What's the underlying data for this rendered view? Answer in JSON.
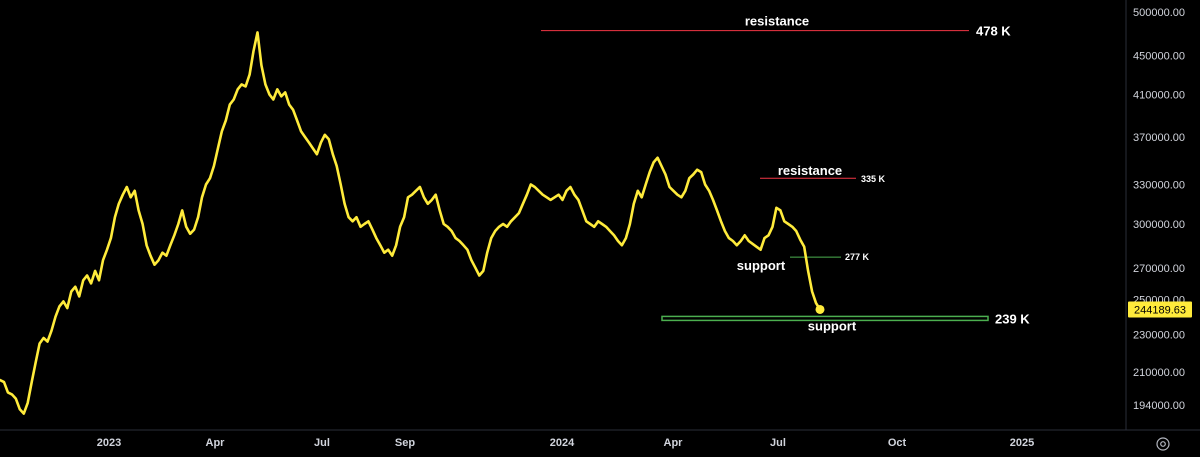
{
  "chart_data": {
    "type": "line",
    "title": "",
    "xlabel": "",
    "ylabel": "",
    "ylim": [
      180000,
      510000
    ],
    "y_scale": "log",
    "grid": false,
    "line_color": "#ffeb3b",
    "background": "#000000",
    "y_ticks": [
      "500000.00",
      "450000.00",
      "410000.00",
      "370000.00",
      "330000.00",
      "300000.00",
      "270000.00",
      "250000.00",
      "230000.00",
      "210000.00",
      "194000.00"
    ],
    "x_ticks": [
      "2023",
      "Apr",
      "Jul",
      "Sep",
      "2024",
      "Apr",
      "Jul",
      "Oct",
      "2025"
    ],
    "last_price_label": "244189.63",
    "series": [
      {
        "values": [
          206000,
          205000,
          200000,
          199000,
          197000,
          192000,
          190000,
          195000,
          205000,
          215000,
          225000,
          228000,
          226000,
          232000,
          240000,
          246000,
          249000,
          245000,
          255000,
          258000,
          252000,
          262000,
          265000,
          260000,
          268000,
          262000,
          275000,
          282000,
          290000,
          305000,
          315000,
          322000,
          328000,
          320000,
          325000,
          310000,
          300000,
          285000,
          278000,
          272000,
          275000,
          280000,
          278000,
          285000,
          292000,
          300000,
          310000,
          298000,
          293000,
          296000,
          305000,
          320000,
          330000,
          335000,
          345000,
          360000,
          375000,
          385000,
          400000,
          405000,
          415000,
          420000,
          418000,
          430000,
          455000,
          476000,
          440000,
          420000,
          410000,
          405000,
          415000,
          408000,
          412000,
          400000,
          395000,
          385000,
          375000,
          370000,
          365000,
          360000,
          355000,
          365000,
          372000,
          368000,
          355000,
          345000,
          330000,
          315000,
          305000,
          302000,
          305000,
          298000,
          300000,
          302000,
          296000,
          290000,
          285000,
          280000,
          282000,
          278000,
          285000,
          298000,
          305000,
          320000,
          322000,
          325000,
          328000,
          320000,
          315000,
          318000,
          322000,
          310000,
          300000,
          298000,
          295000,
          290000,
          288000,
          285000,
          282000,
          275000,
          270000,
          265000,
          268000,
          280000,
          290000,
          295000,
          298000,
          300000,
          298000,
          302000,
          305000,
          308000,
          315000,
          322000,
          330000,
          328000,
          325000,
          322000,
          320000,
          318000,
          320000,
          322000,
          318000,
          325000,
          328000,
          322000,
          318000,
          310000,
          302000,
          300000,
          298000,
          302000,
          300000,
          298000,
          295000,
          292000,
          288000,
          285000,
          290000,
          300000,
          315000,
          325000,
          320000,
          330000,
          340000,
          348000,
          352000,
          345000,
          338000,
          328000,
          325000,
          322000,
          320000,
          325000,
          335000,
          338000,
          342000,
          340000,
          330000,
          325000,
          318000,
          310000,
          302000,
          295000,
          290000,
          288000,
          285000,
          288000,
          292000,
          288000,
          286000,
          284000,
          282000,
          290000,
          292000,
          298000,
          312000,
          310000,
          302000,
          300000,
          298000,
          295000,
          289000,
          284000,
          268000,
          255000,
          248000,
          244189
        ]
      }
    ],
    "annotations": [
      {
        "type": "resistance",
        "value": 478000,
        "label": "resistance",
        "value_label": "478 K",
        "color": "#f23645"
      },
      {
        "type": "resistance",
        "value": 335000,
        "label": "resistance",
        "value_label": "335 K",
        "color": "#f23645"
      },
      {
        "type": "support",
        "value": 277000,
        "label": "support",
        "value_label": "277 K",
        "color": "#4caf50"
      },
      {
        "type": "support",
        "value": 239000,
        "label": "support",
        "value_label": "239 K",
        "color": "#4caf50"
      }
    ],
    "settings_icon": "gear-icon"
  }
}
